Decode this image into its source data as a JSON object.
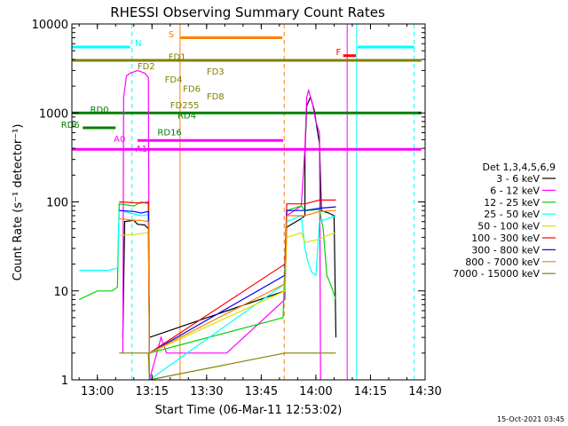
{
  "chart_data": {
    "type": "line",
    "title": "RHESSI Observing Summary Count Rates",
    "xlabel": "Start Time (06-Mar-11 12:53:02)",
    "ylabel": "Count Rate (s⁻¹ detector⁻¹)",
    "xlim": [
      0,
      97
    ],
    "ylim": [
      1,
      10000
    ],
    "yscale": "log",
    "x_unit": "minutes since 12:53:02",
    "x_ticks": [
      {
        "x": 7,
        "label": "13:00"
      },
      {
        "x": 22,
        "label": "13:15"
      },
      {
        "x": 37,
        "label": "13:30"
      },
      {
        "x": 52,
        "label": "13:45"
      },
      {
        "x": 67,
        "label": "14:00"
      },
      {
        "x": 82,
        "label": "14:15"
      },
      {
        "x": 97,
        "label": "14:30"
      }
    ],
    "y_ticks": [
      {
        "y": 1,
        "label": "1"
      },
      {
        "y": 10,
        "label": "10"
      },
      {
        "y": 100,
        "label": "100"
      },
      {
        "y": 1000,
        "label": "1000"
      },
      {
        "y": 10000,
        "label": "10000"
      }
    ],
    "legend_title": "Det 1,3,4,5,6,9",
    "legend_position": "right",
    "series": [
      {
        "name": "3 - 6 keV",
        "color": "#000000",
        "points": [
          [
            14,
            3
          ],
          [
            14.5,
            60
          ],
          [
            17,
            62
          ],
          [
            18,
            56
          ],
          [
            20,
            55
          ],
          [
            21,
            50
          ],
          [
            21.3,
            3
          ],
          [
            58.5,
            10
          ],
          [
            59,
            52
          ],
          [
            63,
            65
          ],
          [
            64,
            70
          ],
          [
            64,
            350
          ],
          [
            64.5,
            1200
          ],
          [
            65.5,
            1500
          ],
          [
            66.5,
            1100
          ],
          [
            67.5,
            600
          ],
          [
            68,
            450
          ],
          [
            68.5,
            80
          ],
          [
            70.5,
            75
          ],
          [
            72,
            70
          ],
          [
            72.5,
            3
          ]
        ]
      },
      {
        "name": "6 - 12 keV",
        "color": "#ff00ff",
        "points": [
          [
            14,
            2
          ],
          [
            14.2,
            1500
          ],
          [
            15,
            2600
          ],
          [
            16,
            2800
          ],
          [
            17,
            2900
          ],
          [
            18,
            3000
          ],
          [
            19,
            2900
          ],
          [
            20,
            2800
          ],
          [
            21,
            2500
          ],
          [
            21.3,
            1
          ],
          [
            24.5,
            3
          ],
          [
            26,
            2
          ],
          [
            29.5,
            2
          ],
          [
            38.5,
            2
          ],
          [
            41,
            2
          ],
          [
            42.5,
            2
          ],
          [
            58.5,
            8
          ],
          [
            59,
            70
          ],
          [
            63,
            90
          ],
          [
            64,
            400
          ],
          [
            64.5,
            1500
          ],
          [
            65,
            1800
          ],
          [
            66,
            1300
          ],
          [
            67,
            800
          ],
          [
            68,
            600
          ],
          [
            68.3,
            1
          ]
        ]
      },
      {
        "name": "12 - 25 keV",
        "color": "#00d000",
        "points": [
          [
            2,
            8
          ],
          [
            7,
            10
          ],
          [
            11,
            10
          ],
          [
            12.5,
            11
          ],
          [
            13,
            95
          ],
          [
            17,
            90
          ],
          [
            19,
            100
          ],
          [
            21,
            95
          ],
          [
            21.3,
            2
          ],
          [
            58,
            5
          ],
          [
            59,
            80
          ],
          [
            63,
            90
          ],
          [
            64,
            80
          ],
          [
            68,
            82
          ],
          [
            69,
            50
          ],
          [
            70,
            15
          ],
          [
            71,
            12
          ],
          [
            72.5,
            8
          ]
        ]
      },
      {
        "name": "25 - 50 keV",
        "color": "#00ffff",
        "points": [
          [
            2,
            17
          ],
          [
            10,
            17
          ],
          [
            12.5,
            18
          ],
          [
            13,
            80
          ],
          [
            16,
            75
          ],
          [
            19,
            70
          ],
          [
            21,
            72
          ],
          [
            21.3,
            1
          ],
          [
            58.5,
            12
          ],
          [
            59,
            60
          ],
          [
            63,
            70
          ],
          [
            64,
            30
          ],
          [
            65,
            20
          ],
          [
            66,
            16
          ],
          [
            67,
            15
          ],
          [
            68,
            60
          ],
          [
            72.5,
            70
          ]
        ]
      },
      {
        "name": "50 - 100 keV",
        "color": "#e0e000",
        "points": [
          [
            13,
            42
          ],
          [
            17,
            43
          ],
          [
            19,
            44
          ],
          [
            21,
            45
          ],
          [
            21.3,
            2
          ],
          [
            58.5,
            10
          ],
          [
            59,
            40
          ],
          [
            63,
            45
          ],
          [
            64,
            35
          ],
          [
            68,
            38
          ],
          [
            70,
            42
          ],
          [
            72.5,
            45
          ]
        ]
      },
      {
        "name": "100 - 300 keV",
        "color": "#ff0000",
        "points": [
          [
            13,
            100
          ],
          [
            17,
            98
          ],
          [
            19,
            97
          ],
          [
            21,
            100
          ],
          [
            21.3,
            2
          ],
          [
            58.5,
            20
          ],
          [
            59,
            95
          ],
          [
            64,
            95
          ],
          [
            68,
            105
          ],
          [
            72.5,
            105
          ]
        ]
      },
      {
        "name": "300 - 800 keV",
        "color": "#0000ff",
        "points": [
          [
            13,
            80
          ],
          [
            17,
            78
          ],
          [
            19,
            75
          ],
          [
            21,
            78
          ],
          [
            21.3,
            2
          ],
          [
            58.5,
            15
          ],
          [
            59,
            80
          ],
          [
            64,
            80
          ],
          [
            68,
            85
          ],
          [
            72.5,
            88
          ]
        ]
      },
      {
        "name": "800 - 7000 keV",
        "color": "#ff8000",
        "points": [
          [
            13,
            65
          ],
          [
            17,
            62
          ],
          [
            19,
            62
          ],
          [
            21,
            60
          ],
          [
            21.3,
            2
          ],
          [
            58.5,
            12
          ],
          [
            59,
            70
          ],
          [
            64,
            70
          ],
          [
            68,
            78
          ],
          [
            72.5,
            80
          ]
        ]
      },
      {
        "name": "7000 - 15000 keV",
        "color": "#808000",
        "points": [
          [
            13,
            2
          ],
          [
            21,
            2
          ],
          [
            21.3,
            1
          ],
          [
            58.5,
            2
          ],
          [
            72.5,
            2
          ]
        ]
      }
    ],
    "vertical_lines": [
      {
        "x": 0,
        "color": "#00ffff",
        "style": "solid"
      },
      {
        "x": 16.5,
        "color": "#00ffff",
        "style": "dashed"
      },
      {
        "x": 29.7,
        "color": "#ff8000",
        "style": "solid"
      },
      {
        "x": 58.3,
        "color": "#ff8000",
        "style": "dashed"
      },
      {
        "x": 75.6,
        "color": "#ff00ff",
        "style": "solid"
      },
      {
        "x": 78.2,
        "color": "#00ffff",
        "style": "solid"
      },
      {
        "x": 94,
        "color": "#00ffff",
        "style": "dashed"
      }
    ],
    "flag_bars": [
      {
        "label": "N",
        "color": "#00ffff",
        "y": 5500,
        "segments": [
          [
            0,
            16
          ],
          [
            78.5,
            94
          ]
        ]
      },
      {
        "label": "S",
        "color": "#ff8000",
        "y": 7000,
        "segments": [
          [
            29.8,
            57.8
          ]
        ]
      },
      {
        "label": "F",
        "color": "#ff0000",
        "y": 4400,
        "segments": [
          [
            74.5,
            78
          ]
        ]
      },
      {
        "label": "FD1",
        "color": "#808000",
        "y": 3900,
        "segments": [
          [
            0,
            96
          ]
        ]
      },
      {
        "label": "RD0",
        "color": "#008000",
        "y": 1000,
        "segments": [
          [
            0,
            96
          ]
        ]
      },
      {
        "label": "RD6",
        "color": "#008000",
        "y": 680,
        "segments": [
          [
            3,
            12
          ]
        ]
      },
      {
        "label": "A0",
        "color": "#ff00ff",
        "y": 490,
        "segments": [
          [
            18,
            58
          ]
        ]
      },
      {
        "label": "A1",
        "color": "#ff00ff",
        "y": 390,
        "segments": [
          [
            0,
            96
          ]
        ]
      }
    ],
    "annotations": [
      {
        "text": "N",
        "x": 17.3,
        "y": 5600,
        "color": "#00ffff"
      },
      {
        "text": "S",
        "x": 26.5,
        "y": 7100,
        "color": "#ff8000"
      },
      {
        "text": "F",
        "x": 72.5,
        "y": 4500,
        "color": "#ff0000"
      },
      {
        "text": "FD1",
        "x": 26.5,
        "y": 3950,
        "color": "#808000"
      },
      {
        "text": "FD2",
        "x": 18,
        "y": 3100,
        "color": "#808000"
      },
      {
        "text": "FD3",
        "x": 37,
        "y": 2700,
        "color": "#808000"
      },
      {
        "text": "FD4",
        "x": 25.5,
        "y": 2200,
        "color": "#808000"
      },
      {
        "text": "FD6",
        "x": 30.5,
        "y": 1720,
        "color": "#808000"
      },
      {
        "text": "FD8",
        "x": 37,
        "y": 1420,
        "color": "#808000"
      },
      {
        "text": "FD255",
        "x": 27,
        "y": 1130,
        "color": "#808000"
      },
      {
        "text": "RD0",
        "x": 5,
        "y": 1010,
        "color": "#008000"
      },
      {
        "text": "RD4",
        "x": 29,
        "y": 870,
        "color": "#008000"
      },
      {
        "text": "RD6",
        "x": -3,
        "y": 680,
        "color": "#008000"
      },
      {
        "text": "RD16",
        "x": 23.5,
        "y": 560,
        "color": "#008000"
      },
      {
        "text": "A0",
        "x": 11.5,
        "y": 470,
        "color": "#ff00ff"
      },
      {
        "text": "A1",
        "x": 17.5,
        "y": 365,
        "color": "#ff00ff"
      }
    ]
  },
  "timestamp": "15-Oct-2021 03:45"
}
